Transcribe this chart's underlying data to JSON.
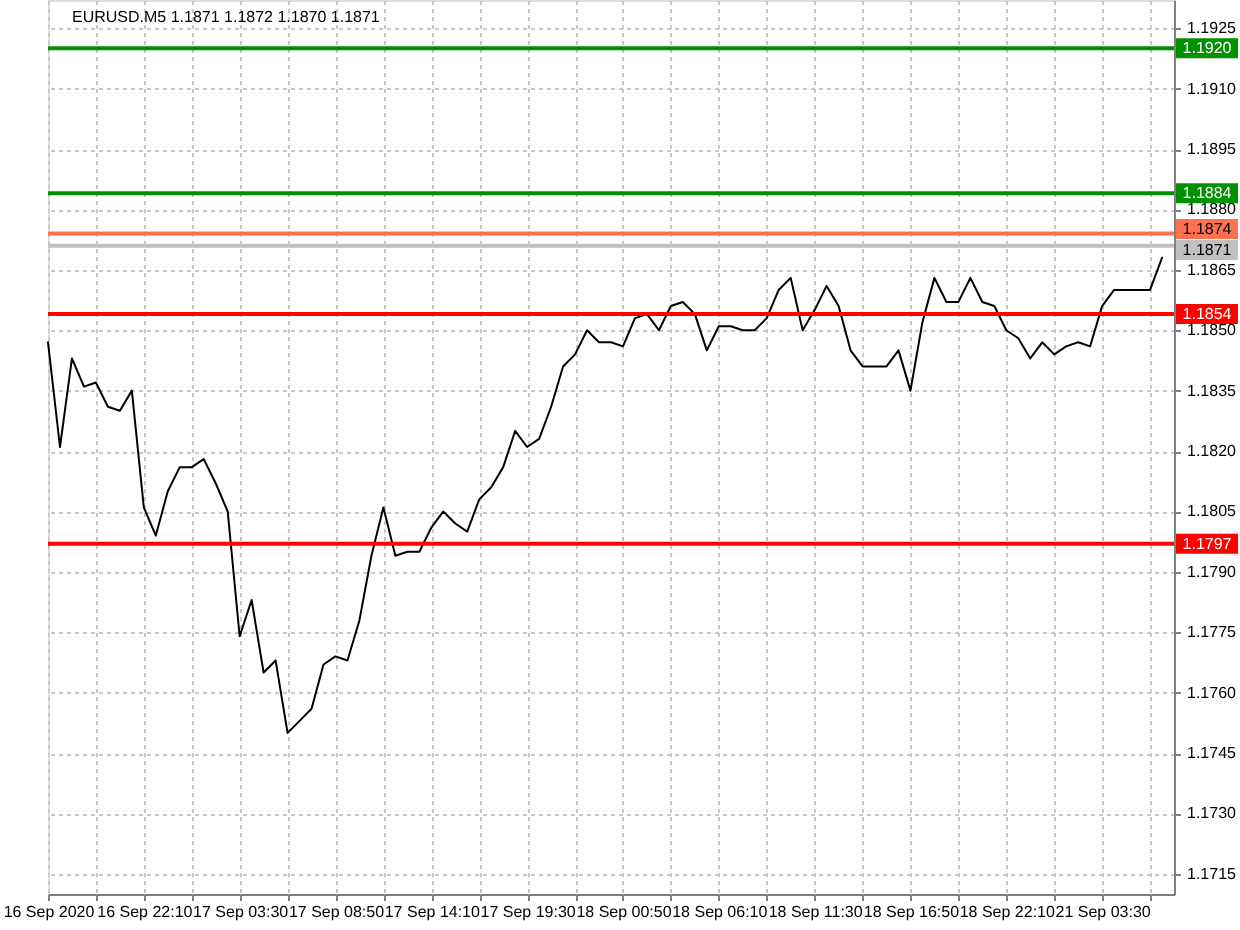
{
  "chart_data": {
    "type": "line",
    "title": "EURUSD.M5 1.1871 1.1872 1.1870 1.1871",
    "categories": [
      "16 Sep 2020",
      null,
      null,
      null,
      null,
      null,
      null,
      null,
      "16 Sep 22:10",
      null,
      null,
      null,
      null,
      null,
      null,
      null,
      "17 Sep 03:30",
      null,
      null,
      null,
      null,
      null,
      null,
      null,
      "17 Sep 08:50",
      null,
      null,
      null,
      null,
      null,
      null,
      null,
      "17 Sep 14:10",
      null,
      null,
      null,
      null,
      null,
      null,
      null,
      "17 Sep 19:30",
      null,
      null,
      null,
      null,
      null,
      null,
      null,
      "18 Sep 00:50",
      null,
      null,
      null,
      null,
      null,
      null,
      null,
      "18 Sep 06:10",
      null,
      null,
      null,
      null,
      null,
      null,
      null,
      "18 Sep 11:30",
      null,
      null,
      null,
      null,
      null,
      null,
      null,
      "18 Sep 16:50",
      null,
      null,
      null,
      null,
      null,
      null,
      null,
      "18 Sep 22:10",
      null,
      null,
      null,
      null,
      null,
      null,
      null,
      "21 Sep 03:30",
      null,
      null,
      null,
      null,
      null,
      null
    ],
    "series": [
      {
        "color": "#000000",
        "values": [
          1.1847,
          1.1821,
          1.1843,
          1.1836,
          1.1837,
          1.1831,
          1.183,
          1.1835,
          1.1806,
          1.1799,
          1.181,
          1.1816,
          1.1816,
          1.1818,
          1.1812,
          1.1805,
          1.1774,
          1.1783,
          1.1765,
          1.1768,
          1.175,
          1.1753,
          1.1756,
          1.1767,
          1.1769,
          1.1768,
          1.1778,
          1.1794,
          1.1806,
          1.1794,
          1.1795,
          1.1795,
          1.1801,
          1.1805,
          1.1802,
          1.18,
          1.1808,
          1.1811,
          1.1816,
          1.1825,
          1.1821,
          1.1823,
          1.1831,
          1.1841,
          1.1844,
          1.185,
          1.1847,
          1.1847,
          1.1846,
          1.1853,
          1.1854,
          1.185,
          1.1856,
          1.1857,
          1.1854,
          1.1845,
          1.1851,
          1.1851,
          1.185,
          1.185,
          1.1853,
          1.186,
          1.1863,
          1.185,
          1.1855,
          1.1861,
          1.1856,
          1.1845,
          1.1841,
          1.1841,
          1.1841,
          1.1845,
          1.1835,
          1.1852,
          1.1863,
          1.1857,
          1.1857,
          1.1863,
          1.1857,
          1.1856,
          1.185,
          1.1848,
          1.1843,
          1.1847,
          1.1844,
          1.1846,
          1.1847,
          1.1846,
          1.1856,
          1.186,
          1.186,
          1.186,
          1.186,
          1.1868,
          null
        ]
      }
    ],
    "ylim": [
      1.171,
      1.1932
    ],
    "yticks": [
      1.1925,
      {
        "value": 1.191,
        "label": "1.1910"
      },
      1.1895,
      {
        "value": 1.188,
        "label": "1.1880"
      },
      1.1865,
      {
        "value": 1.185,
        "label": "1.1850"
      },
      1.1835,
      {
        "value": 1.182,
        "label": "1.1820"
      },
      1.1805,
      {
        "value": 1.179,
        "label": "1.1790"
      },
      1.1775,
      {
        "value": 1.176,
        "label": "1.1760"
      },
      1.1745,
      {
        "value": 1.173,
        "label": "1.1730"
      },
      1.1715
    ],
    "grid": true,
    "ref_lines": [
      {
        "axis": "y",
        "value": 1.192,
        "label": "1.1920",
        "color": "#009000"
      },
      {
        "axis": "y",
        "value": 1.1884,
        "label": "1.1884",
        "color": "#009000"
      },
      {
        "axis": "y",
        "value": 1.1874,
        "label": "1.1874",
        "color": "#ff7050"
      },
      {
        "axis": "y",
        "value": 1.1871,
        "label": "1.1871",
        "color": "#c0c0c0"
      },
      {
        "axis": "y",
        "value": 1.1854,
        "label": "1.1854",
        "color": "#ff0000"
      },
      {
        "axis": "y",
        "value": 1.1797,
        "label": "1.1797",
        "color": "#ff0000"
      }
    ]
  }
}
